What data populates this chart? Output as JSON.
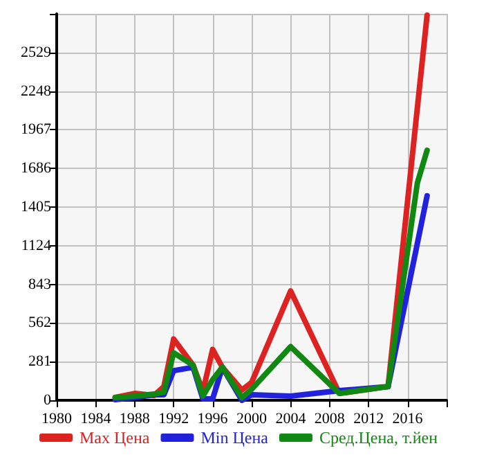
{
  "chart_data": {
    "type": "line",
    "x": [
      1986,
      1988,
      1990,
      1991,
      1992,
      1994,
      1995,
      1996,
      1997,
      1999,
      2000,
      2004,
      2009,
      2014,
      2017,
      2018
    ],
    "series": [
      {
        "name": "Max Цена",
        "color": "#dd2222",
        "values": [
          20,
          50,
          35,
          100,
          445,
          255,
          65,
          370,
          240,
          75,
          130,
          795,
          50,
          100,
          2125,
          2800
        ]
      },
      {
        "name": "Min Цена",
        "color": "#2222dd",
        "values": [
          5,
          20,
          40,
          40,
          215,
          240,
          10,
          10,
          240,
          0,
          40,
          30,
          70,
          100,
          1140,
          1487
        ]
      },
      {
        "name": "Сред.Цена, т.йен",
        "color": "#118811",
        "values": [
          20,
          30,
          45,
          60,
          345,
          255,
          30,
          150,
          240,
          20,
          80,
          390,
          50,
          100,
          1580,
          1818
        ]
      }
    ],
    "xlim": [
      1980,
      2020
    ],
    "xticks": [
      1980,
      1984,
      1988,
      1992,
      1996,
      2000,
      2004,
      2008,
      2012,
      2016,
      {
        "value": 2020,
        "label": null
      }
    ],
    "ylim": [
      0,
      2810
    ],
    "yticks": [
      0,
      281,
      562,
      843,
      1124,
      1405,
      1686,
      1967,
      2248,
      2529,
      {
        "value": 2810,
        "label": null
      }
    ],
    "grid": true,
    "legend": "bottom",
    "marker": "none",
    "line_style": "solid"
  }
}
